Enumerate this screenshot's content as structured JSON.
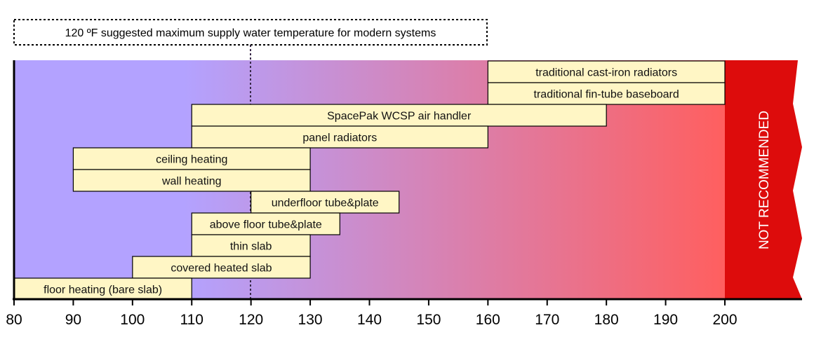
{
  "chart_data": {
    "type": "bar",
    "subtype": "range",
    "title": "",
    "xlabel": "",
    "ylabel": "",
    "xlim": [
      80,
      212
    ],
    "x_ticks": [
      80,
      90,
      100,
      110,
      120,
      130,
      140,
      150,
      160,
      170,
      180,
      190,
      200
    ],
    "ranges": [
      {
        "label": "traditional cast-iron radiators",
        "min": 160,
        "max": 200
      },
      {
        "label": "traditional fin-tube baseboard",
        "min": 160,
        "max": 200
      },
      {
        "label": "SpacePak WCSP air handler",
        "min": 110,
        "max": 180
      },
      {
        "label": "panel radiators",
        "min": 110,
        "max": 160
      },
      {
        "label": "ceiling heating",
        "min": 90,
        "max": 130
      },
      {
        "label": "wall heating",
        "min": 90,
        "max": 130
      },
      {
        "label": "underfloor tube&plate",
        "min": 120,
        "max": 145
      },
      {
        "label": "above floor tube&plate",
        "min": 110,
        "max": 135
      },
      {
        "label": "thin slab",
        "min": 110,
        "max": 130
      },
      {
        "label": "covered heated slab",
        "min": 100,
        "max": 130
      },
      {
        "label": "floor heating (bare slab)",
        "min": 80,
        "max": 110
      }
    ],
    "reference_line": {
      "value": 120,
      "annotation": "120 ºF suggested maximum supply water temperature for modern systems"
    },
    "not_recommended": {
      "from": 200,
      "label": "NOT RECOMMENDED"
    },
    "colors": {
      "gradient_start": "#b3a2ff",
      "gradient_end": "#ff5f5f",
      "bar_fill": "#fff6c5",
      "not_recommended": "#dd0c0c"
    }
  }
}
